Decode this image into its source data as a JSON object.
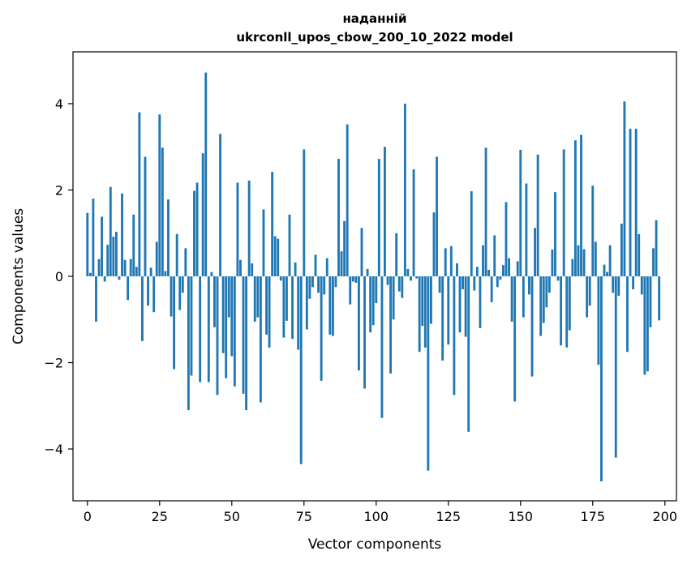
{
  "chart_data": {
    "type": "bar",
    "title_lines": [
      "наданній",
      "ukrconll_upos_cbow_200_10_2022 model"
    ],
    "xlabel": "Vector components",
    "ylabel": "Components values",
    "xlim": [
      -5,
      204
    ],
    "ylim": [
      -5.2,
      5.2
    ],
    "xticks": [
      0,
      25,
      50,
      75,
      100,
      125,
      150,
      175,
      200
    ],
    "yticks": [
      -4,
      -2,
      0,
      2,
      4
    ],
    "ytick_labels": [
      "−4",
      "−2",
      "0",
      "2",
      "4"
    ],
    "grid": false,
    "bar_color": "#1f77b4",
    "values": [
      1.47,
      0.08,
      1.8,
      -1.05,
      0.4,
      1.38,
      -0.12,
      0.73,
      2.07,
      0.92,
      1.03,
      -0.08,
      1.92,
      0.38,
      -0.55,
      0.4,
      1.43,
      0.22,
      3.8,
      -1.5,
      2.77,
      -0.68,
      0.2,
      -0.83,
      0.8,
      3.75,
      2.98,
      0.12,
      1.78,
      -0.93,
      -2.15,
      0.98,
      -0.78,
      -0.38,
      0.65,
      -3.1,
      -2.3,
      1.98,
      2.17,
      -2.45,
      2.85,
      4.72,
      -2.45,
      0.1,
      -1.18,
      -2.75,
      3.3,
      -1.78,
      -2.36,
      -0.95,
      -1.85,
      -2.55,
      2.17,
      0.38,
      -2.72,
      -3.1,
      2.22,
      0.3,
      -1.05,
      -0.95,
      -2.92,
      1.55,
      -1.35,
      -1.65,
      2.42,
      0.93,
      0.87,
      -0.1,
      -1.42,
      -1.03,
      1.43,
      -1.45,
      0.32,
      -1.7,
      -4.35,
      2.94,
      -1.23,
      -0.52,
      -0.25,
      0.5,
      -0.38,
      -2.42,
      -0.42,
      0.42,
      -1.35,
      -1.38,
      -0.25,
      2.72,
      0.58,
      1.28,
      3.52,
      -0.65,
      -0.12,
      -0.15,
      -2.18,
      1.12,
      -2.6,
      0.17,
      -1.3,
      -1.13,
      -0.62,
      2.72,
      -3.28,
      3.0,
      -0.2,
      -2.25,
      -1.0,
      1.0,
      -0.35,
      -0.5,
      4.0,
      0.17,
      -0.1,
      2.48,
      -0.05,
      -1.75,
      -1.15,
      -1.65,
      -4.5,
      -1.1,
      1.48,
      2.77,
      -0.38,
      -1.95,
      0.65,
      -1.58,
      0.7,
      -2.75,
      0.3,
      -1.3,
      -0.3,
      -1.4,
      -3.6,
      1.97,
      -0.33,
      0.22,
      -1.2,
      0.72,
      2.98,
      0.15,
      -0.6,
      0.95,
      -0.25,
      -0.08,
      0.26,
      1.72,
      0.42,
      -1.05,
      -2.9,
      0.35,
      2.93,
      -0.95,
      2.15,
      -0.42,
      -2.32,
      1.12,
      2.82,
      -1.38,
      -1.08,
      -0.72,
      -0.38,
      0.62,
      1.95,
      -0.1,
      -1.6,
      2.94,
      -1.65,
      -1.25,
      0.4,
      3.15,
      0.72,
      3.28,
      0.63,
      -0.95,
      -0.68,
      2.1,
      0.8,
      -2.05,
      -4.75,
      0.27,
      0.1,
      0.72,
      -0.38,
      -4.2,
      -0.45,
      1.22,
      4.05,
      -1.75,
      3.42,
      -0.3,
      3.42,
      0.98,
      -0.42,
      -2.28,
      -2.2,
      -1.18,
      0.65,
      1.3,
      -1.02
    ]
  }
}
